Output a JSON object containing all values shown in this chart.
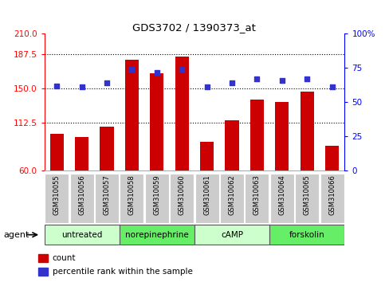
{
  "title": "GDS3702 / 1390373_at",
  "samples": [
    "GSM310055",
    "GSM310056",
    "GSM310057",
    "GSM310058",
    "GSM310059",
    "GSM310060",
    "GSM310061",
    "GSM310062",
    "GSM310063",
    "GSM310064",
    "GSM310065",
    "GSM310066"
  ],
  "counts": [
    100,
    97,
    108,
    182,
    167,
    185,
    92,
    115,
    138,
    135,
    147,
    87
  ],
  "percentiles": [
    62,
    61,
    64,
    74,
    72,
    74,
    61,
    64,
    67,
    66,
    67,
    61
  ],
  "ylim_left": [
    60,
    210
  ],
  "ylim_right": [
    0,
    100
  ],
  "yticks_left": [
    60,
    112.5,
    150,
    187.5,
    210
  ],
  "yticks_right": [
    0,
    25,
    50,
    75,
    100
  ],
  "yticklabels_right": [
    "0",
    "25",
    "50",
    "75",
    "100%"
  ],
  "bar_color": "#cc0000",
  "scatter_color": "#3333cc",
  "groups": [
    {
      "label": "untreated",
      "start": 0,
      "end": 3,
      "color": "#ccffcc"
    },
    {
      "label": "norepinephrine",
      "start": 3,
      "end": 6,
      "color": "#66ee66"
    },
    {
      "label": "cAMP",
      "start": 6,
      "end": 9,
      "color": "#ccffcc"
    },
    {
      "label": "forskolin",
      "start": 9,
      "end": 12,
      "color": "#66ee66"
    }
  ],
  "agent_label": "agent",
  "legend_count_label": "count",
  "legend_pct_label": "percentile rank within the sample",
  "hgrid_vals": [
    112.5,
    150,
    187.5
  ],
  "bar_bottom": 60
}
